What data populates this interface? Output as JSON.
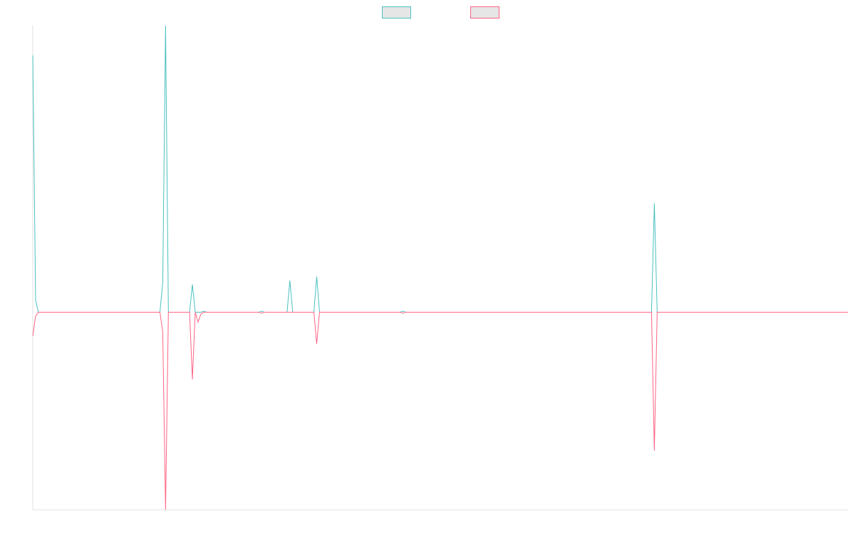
{
  "chart_data": {
    "type": "line",
    "title": "",
    "xlabel": "",
    "ylabel": "",
    "ylim": [
      -1,
      1.45
    ],
    "grid": false,
    "legend_position": "top-center",
    "series": [
      {
        "color": "#4bc0c0",
        "legend_fill": "#e6e6e6",
        "points": [
          [
            0,
            1.3
          ],
          [
            2,
            0.06
          ],
          [
            4,
            0
          ],
          [
            90,
            0
          ],
          [
            92,
            0.15
          ],
          [
            94,
            1.45
          ],
          [
            96,
            0
          ],
          [
            111,
            0
          ],
          [
            113,
            0.14
          ],
          [
            115,
            0
          ],
          [
            117,
            0
          ],
          [
            119,
            0
          ],
          [
            121,
            0.005
          ],
          [
            123,
            0
          ],
          [
            160,
            0
          ],
          [
            162,
            0.005
          ],
          [
            164,
            0
          ],
          [
            180,
            0
          ],
          [
            182,
            0.16
          ],
          [
            184,
            0
          ],
          [
            199,
            0
          ],
          [
            201,
            0.18
          ],
          [
            203,
            0
          ],
          [
            260,
            0
          ],
          [
            262,
            0.005
          ],
          [
            264,
            0
          ],
          [
            438,
            0
          ],
          [
            440,
            0.55
          ],
          [
            442,
            0
          ],
          [
            577,
            0
          ]
        ]
      },
      {
        "color": "#ff6384",
        "legend_fill": "#e6e6e6",
        "points": [
          [
            0,
            -0.12
          ],
          [
            2,
            -0.02
          ],
          [
            4,
            0
          ],
          [
            90,
            0
          ],
          [
            92,
            -0.1
          ],
          [
            94,
            -1.0
          ],
          [
            96,
            0
          ],
          [
            111,
            0
          ],
          [
            113,
            -0.34
          ],
          [
            115,
            0
          ],
          [
            117,
            -0.05
          ],
          [
            119,
            -0.01
          ],
          [
            121,
            0
          ],
          [
            123,
            0
          ],
          [
            160,
            0
          ],
          [
            162,
            -0.005
          ],
          [
            164,
            0
          ],
          [
            199,
            0
          ],
          [
            201,
            -0.16
          ],
          [
            203,
            0
          ],
          [
            260,
            0
          ],
          [
            262,
            -0.005
          ],
          [
            264,
            0
          ],
          [
            438,
            0
          ],
          [
            440,
            -0.7
          ],
          [
            442,
            0
          ],
          [
            577,
            0
          ]
        ]
      }
    ]
  }
}
